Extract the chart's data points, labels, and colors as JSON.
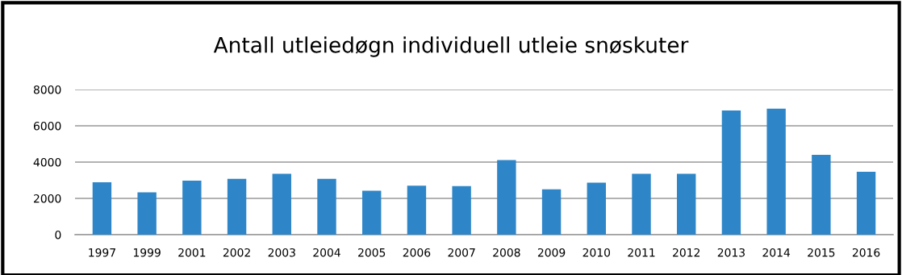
{
  "chart_data": {
    "type": "bar",
    "title": "Antall utleiedøgn individuell utleie snøskuter",
    "categories": [
      "1997",
      "1999",
      "2001",
      "2002",
      "2003",
      "2004",
      "2005",
      "2006",
      "2007",
      "2008",
      "2009",
      "2010",
      "2011",
      "2012",
      "2013",
      "2014",
      "2015",
      "2016"
    ],
    "values": [
      2890,
      2330,
      2980,
      3080,
      3360,
      3080,
      2420,
      2700,
      2680,
      4110,
      2500,
      2870,
      3350,
      3350,
      6850,
      6950,
      4400,
      3470
    ],
    "color": "#2e86c8",
    "ylim": [
      0,
      8000
    ],
    "yticks": [
      0,
      2000,
      4000,
      6000,
      8000
    ],
    "grid": "y",
    "legend": false
  }
}
